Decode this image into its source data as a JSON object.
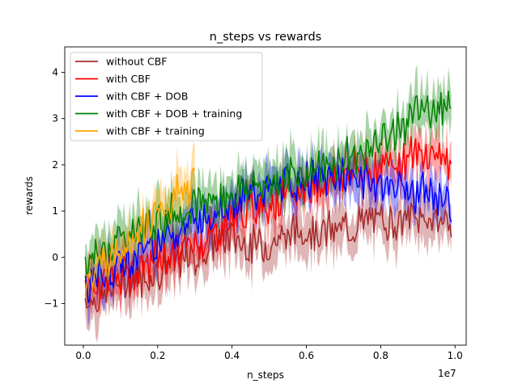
{
  "chart_data": {
    "type": "line",
    "title": "n_steps vs rewards",
    "xlabel": "n_steps",
    "ylabel": "rewards",
    "x_scale_label": "1e7",
    "xlim": [
      -0.05,
      1.03
    ],
    "ylim": [
      -1.9,
      4.55
    ],
    "x_ticks": [
      0.0,
      0.2,
      0.4,
      0.6,
      0.8,
      1.0
    ],
    "x_tick_labels": [
      "0.0",
      "0.2",
      "0.4",
      "0.6",
      "0.8",
      "1.0"
    ],
    "y_ticks": [
      -1,
      0,
      1,
      2,
      3,
      4
    ],
    "y_tick_labels": [
      "−1",
      "0",
      "1",
      "2",
      "3",
      "4"
    ],
    "legend_position": "top-left",
    "band_opacity": 0.35,
    "series": [
      {
        "name": "without CBF",
        "color": "#a52a2a",
        "band": 0.45,
        "x": [
          0.005,
          0.05,
          0.1,
          0.15,
          0.2,
          0.25,
          0.3,
          0.35,
          0.4,
          0.45,
          0.5,
          0.55,
          0.6,
          0.65,
          0.7,
          0.75,
          0.8,
          0.85,
          0.9,
          0.95,
          0.99
        ],
        "y": [
          -0.9,
          -0.9,
          -0.5,
          -0.45,
          -0.3,
          -0.1,
          0.0,
          0.3,
          0.45,
          0.25,
          0.3,
          0.5,
          0.6,
          0.55,
          0.6,
          0.75,
          0.8,
          0.8,
          0.85,
          0.8,
          0.85
        ]
      },
      {
        "name": "with CBF",
        "color": "#ff0000",
        "band": 0.4,
        "x": [
          0.005,
          0.05,
          0.1,
          0.15,
          0.2,
          0.25,
          0.3,
          0.35,
          0.4,
          0.45,
          0.5,
          0.55,
          0.6,
          0.65,
          0.7,
          0.75,
          0.8,
          0.85,
          0.9,
          0.95,
          0.99
        ],
        "y": [
          -0.8,
          -0.5,
          -0.4,
          -0.3,
          0.0,
          0.1,
          0.3,
          0.5,
          0.8,
          1.0,
          1.2,
          1.3,
          1.5,
          1.6,
          1.8,
          1.9,
          2.0,
          2.1,
          2.2,
          2.3,
          2.0
        ]
      },
      {
        "name": "with CBF + DOB",
        "color": "#0000ff",
        "band": 0.4,
        "x": [
          0.005,
          0.05,
          0.1,
          0.15,
          0.2,
          0.25,
          0.3,
          0.35,
          0.4,
          0.45,
          0.5,
          0.55,
          0.6,
          0.65,
          0.7,
          0.75,
          0.8,
          0.85,
          0.9,
          0.95,
          0.99
        ],
        "y": [
          -0.6,
          -0.4,
          -0.2,
          0.1,
          0.4,
          0.6,
          0.8,
          1.0,
          1.2,
          1.35,
          1.45,
          1.55,
          1.65,
          1.7,
          1.75,
          1.7,
          1.6,
          1.5,
          1.4,
          1.3,
          1.2
        ]
      },
      {
        "name": "with CBF + DOB + training",
        "color": "#008000",
        "band": 0.45,
        "x": [
          0.005,
          0.05,
          0.1,
          0.15,
          0.2,
          0.25,
          0.3,
          0.35,
          0.4,
          0.45,
          0.5,
          0.55,
          0.6,
          0.65,
          0.7,
          0.75,
          0.8,
          0.85,
          0.9,
          0.95,
          0.99
        ],
        "y": [
          -0.3,
          0.1,
          0.4,
          0.6,
          0.8,
          1.0,
          1.1,
          1.25,
          1.4,
          1.5,
          1.6,
          1.7,
          1.85,
          1.95,
          2.1,
          2.3,
          2.5,
          2.8,
          3.1,
          3.3,
          3.4
        ]
      },
      {
        "name": "with CBF + training",
        "color": "#ffa500",
        "band": 0.4,
        "x": [
          0.005,
          0.05,
          0.1,
          0.15,
          0.2,
          0.25,
          0.3
        ],
        "y": [
          -0.7,
          -0.1,
          0.2,
          0.6,
          0.9,
          1.3,
          1.6
        ]
      }
    ]
  }
}
